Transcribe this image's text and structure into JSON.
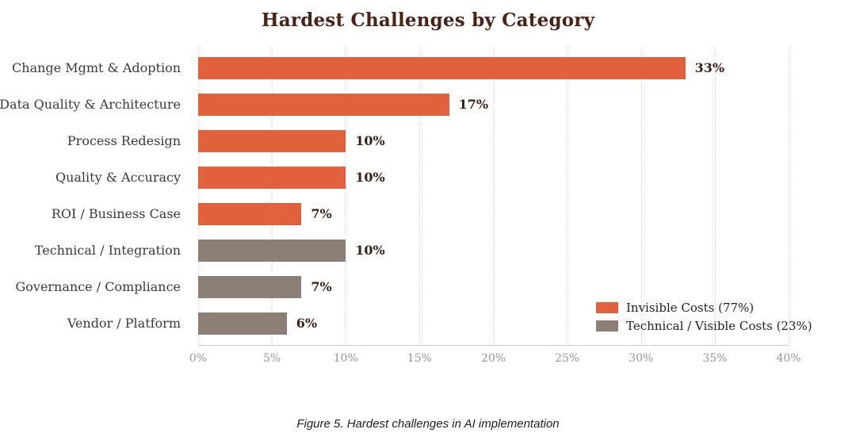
{
  "chart_data": {
    "type": "bar",
    "orientation": "horizontal",
    "title": "Hardest Challenges by Category",
    "categories": [
      "Change Mgmt & Adoption",
      "Data Quality & Architecture",
      "Process Redesign",
      "Quality & Accuracy",
      "ROI / Business Case",
      "Technical / Integration",
      "Governance / Compliance",
      "Vendor / Platform"
    ],
    "values": [
      33,
      17,
      10,
      10,
      7,
      10,
      7,
      6
    ],
    "value_labels": [
      "33%",
      "17%",
      "10%",
      "10%",
      "7%",
      "10%",
      "7%",
      "6%"
    ],
    "bar_series": [
      "invisible",
      "invisible",
      "invisible",
      "invisible",
      "invisible",
      "technical",
      "technical",
      "technical"
    ],
    "xlim": [
      0,
      40
    ],
    "xticks": [
      0,
      5,
      10,
      15,
      20,
      25,
      30,
      35,
      40
    ],
    "xtick_labels": [
      "0%",
      "5%",
      "10%",
      "15%",
      "20%",
      "25%",
      "30%",
      "35%",
      "40%"
    ],
    "grid": "vertical-dotted",
    "legend": {
      "position": "bottom-right",
      "items": [
        {
          "label": "Invisible Costs (77%)",
          "series": "invisible",
          "color": "#E0613C"
        },
        {
          "label": "Technical / Visible Costs (23%)",
          "series": "technical",
          "color": "#8C7F76"
        }
      ]
    }
  },
  "caption": "Figure 5. Hardest challenges in AI implementation",
  "colors": {
    "invisible": "#E0613C",
    "technical": "#8C7F76",
    "title": "#4A2318",
    "value_label": "#3B1F12",
    "category_label": "#3A3A3A",
    "tick_label": "#979797",
    "grid": "#D9D9D9",
    "axis": "#CCCCCC",
    "background": "#FFFFFF"
  }
}
